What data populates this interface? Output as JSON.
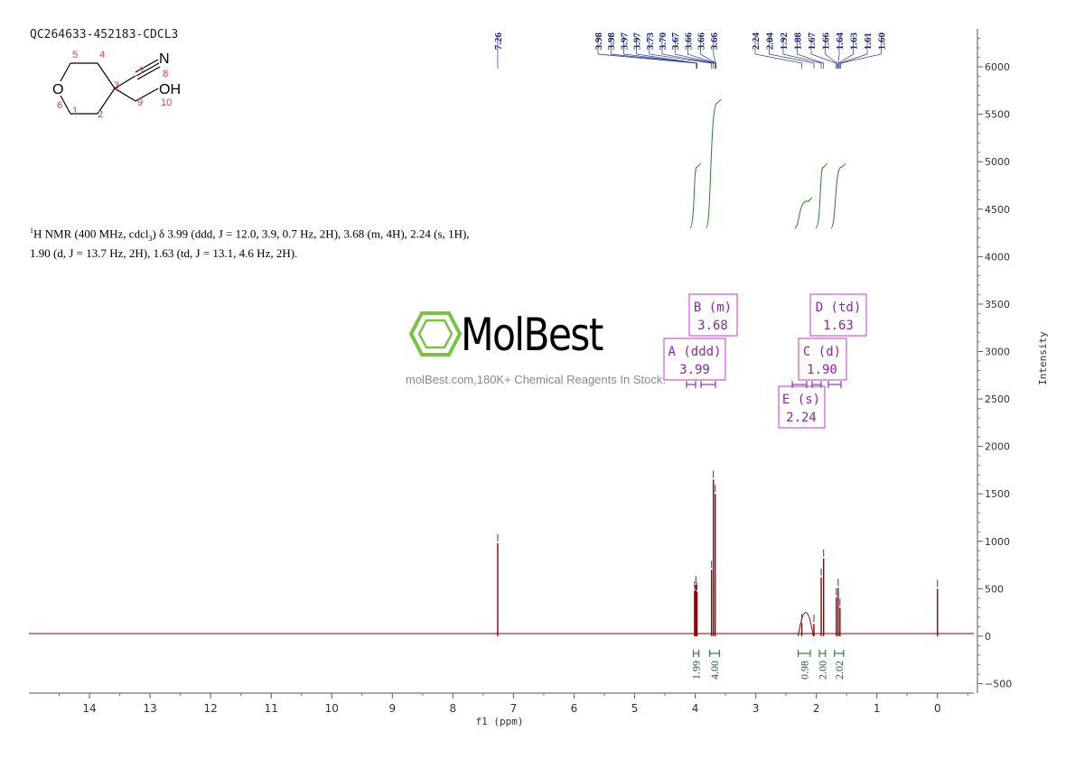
{
  "header": {
    "sample_id": "QC264633-452183-CDCL3"
  },
  "nmr_description": {
    "prefix_sup": "1",
    "line1_a": "H NMR (400 MHz, cdcl",
    "line1_sub": "3",
    "line1_b": ") δ 3.99 (ddd, J = 12.0, 3.9, 0.7 Hz, 2H), 3.68 (m, 4H), 2.24 (s, 1H),",
    "line2": "1.90 (d, J = 13.7 Hz, 2H), 1.63 (td, J = 13.1, 4.6 Hz, 2H)."
  },
  "watermark": {
    "brand": "MolBest",
    "tagline": "molBest.com,180K+ Chemical Reagents In Stock."
  },
  "structure": {
    "atoms": {
      "o": "O",
      "n": "N",
      "oh": "OH"
    },
    "numbers": [
      "5",
      "4",
      "7",
      "8",
      "3",
      "6",
      "1",
      "2",
      "9",
      "10"
    ]
  },
  "multiplet_boxes": [
    {
      "id": "B",
      "line1": "B (m)",
      "line2": "3.68"
    },
    {
      "id": "D",
      "line1": "D (td)",
      "line2": "1.63"
    },
    {
      "id": "A",
      "line1": "A (ddd)",
      "line2": "3.99"
    },
    {
      "id": "C",
      "line1": "C (d)",
      "line2": "1.90"
    },
    {
      "id": "E",
      "line1": "E (s)",
      "line2": "2.24"
    }
  ],
  "colors": {
    "spectrum": "#8b0000",
    "peak_label": "#1a237e",
    "integral": "#2e7d32",
    "box": "#c837c8",
    "watermark_logo": "#7cc242"
  },
  "chart_data": {
    "type": "line",
    "xlabel": "f1 (ppm)",
    "ylabel": "Intensity",
    "xlim": [
      15,
      -0.6
    ],
    "ylim": [
      -600,
      6400
    ],
    "x_ticks": [
      "14",
      "13",
      "12",
      "11",
      "10",
      "9",
      "8",
      "7",
      "6",
      "5",
      "4",
      "3",
      "2",
      "1",
      "0"
    ],
    "y_ticks": [
      "6000",
      "5500",
      "5000",
      "4500",
      "4000",
      "3500",
      "3000",
      "2500",
      "2000",
      "1500",
      "1000",
      "500",
      "0",
      "−500"
    ],
    "peak_labels_group1": [
      "7.26"
    ],
    "peak_labels_group2": [
      "3.98",
      "3.98",
      "3.97",
      "3.97",
      "3.73",
      "3.70",
      "3.67",
      "3.66",
      "3.66",
      "3.66"
    ],
    "peak_labels_group3": [
      "2.24",
      "2.04",
      "1.92",
      "1.88",
      "1.67",
      "1.66",
      "1.64",
      "1.63",
      "1.61",
      "1.60"
    ],
    "integrals": [
      {
        "label": "1.99",
        "from": 4.03,
        "to": 3.94
      },
      {
        "label": "4.00",
        "from": 3.76,
        "to": 3.6
      },
      {
        "label": "0.98",
        "from": 2.3,
        "to": 2.1
      },
      {
        "label": "2.00",
        "from": 1.95,
        "to": 1.85
      },
      {
        "label": "2.02",
        "from": 1.7,
        "to": 1.55
      }
    ],
    "peaks": [
      {
        "ppm": 7.26,
        "height": 980
      },
      {
        "ppm": 4.01,
        "height": 480
      },
      {
        "ppm": 3.99,
        "height": 540
      },
      {
        "ppm": 3.97,
        "height": 470
      },
      {
        "ppm": 3.73,
        "height": 700
      },
      {
        "ppm": 3.7,
        "height": 1650
      },
      {
        "ppm": 3.67,
        "height": 1500
      },
      {
        "ppm": 2.24,
        "height": 140
      },
      {
        "ppm": 2.04,
        "height": 130
      },
      {
        "ppm": 1.92,
        "height": 620
      },
      {
        "ppm": 1.88,
        "height": 820
      },
      {
        "ppm": 1.67,
        "height": 410
      },
      {
        "ppm": 1.64,
        "height": 510
      },
      {
        "ppm": 1.61,
        "height": 300
      },
      {
        "ppm": 0.0,
        "height": 500
      }
    ],
    "integral_curves": [
      {
        "x_from": 4.03,
        "x_to": 3.94,
        "y_from": 4300,
        "y_to": 4980
      },
      {
        "x_from": 3.76,
        "x_to": 3.6,
        "y_from": 4300,
        "y_to": 5660
      },
      {
        "x_from": 2.3,
        "x_to": 2.1,
        "y_from": 4300,
        "y_to": 4620
      },
      {
        "x_from": 1.95,
        "x_to": 1.85,
        "y_from": 4300,
        "y_to": 4980
      },
      {
        "x_from": 1.7,
        "x_to": 1.55,
        "y_from": 4300,
        "y_to": 4980
      }
    ]
  }
}
